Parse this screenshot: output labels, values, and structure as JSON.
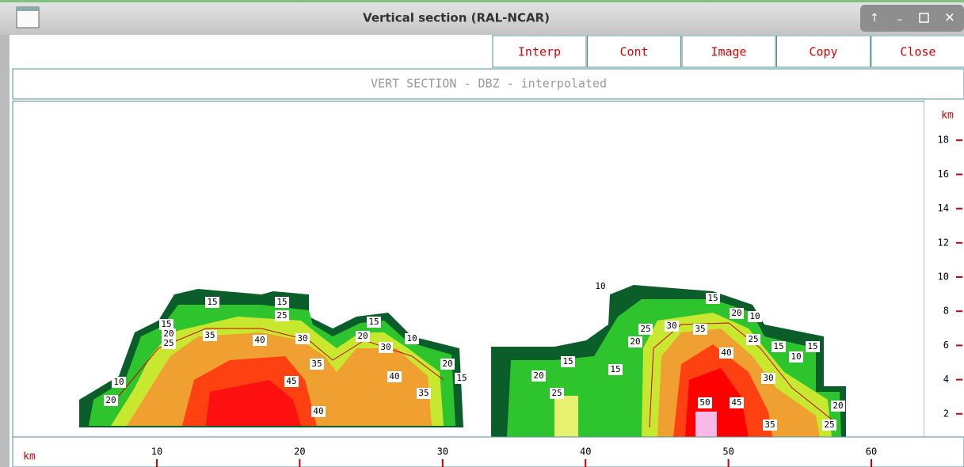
{
  "window": {
    "title": "Vertical section (RAL-NCAR)"
  },
  "buttons": [
    "Interp",
    "Cont",
    "Image",
    "Copy",
    "Close"
  ],
  "subtitle": "VERT SECTION - DBZ - interpolated",
  "x_axis": {
    "unit": "km",
    "ticks": [
      10,
      20,
      30,
      40,
      50,
      60
    ]
  },
  "y_axis": {
    "unit": "km",
    "ticks": [
      18,
      16,
      14,
      12,
      10,
      8,
      6,
      4,
      2
    ]
  },
  "contour_labels": [
    "20",
    "10",
    "25",
    "20",
    "15",
    "15",
    "35",
    "40",
    "30",
    "25",
    "15",
    "35",
    "45",
    "40",
    "20",
    "15",
    "30",
    "40",
    "35",
    "10",
    "20",
    "15",
    "10",
    "15",
    "20",
    "25",
    "15",
    "20",
    "25",
    "30",
    "35",
    "15",
    "20",
    "10",
    "25",
    "40",
    "15",
    "10",
    "15",
    "30",
    "50",
    "45",
    "35",
    "20",
    "25"
  ]
}
